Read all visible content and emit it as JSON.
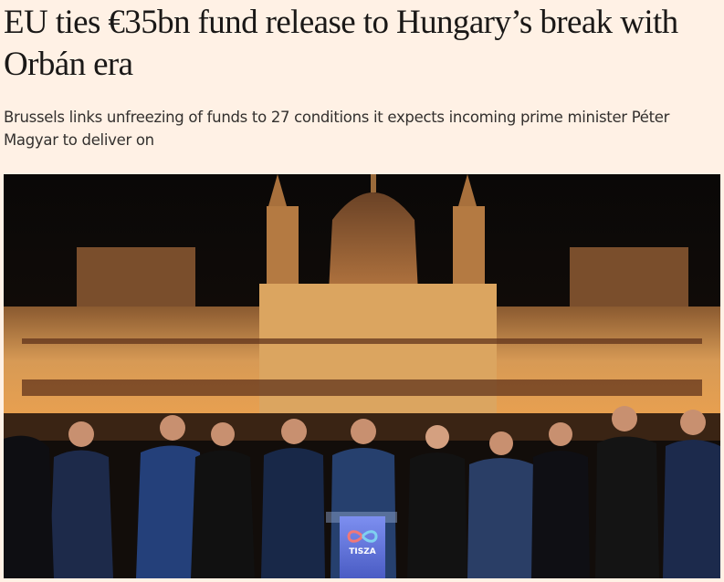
{
  "article": {
    "headline": "EU ties €35bn fund release to Hungary’s break with Orbán era",
    "standfirst": "Brussels links unfreezing of funds to 27 conditions it expects incoming prime minister Péter Magyar to deliver on"
  },
  "photo": {
    "podium_logo_text": "TISZA",
    "colors": {
      "background": "#fff1e5",
      "building_glow": "#e0a050",
      "sky": "#0d0a08",
      "podium": "#5a6fd8"
    }
  }
}
